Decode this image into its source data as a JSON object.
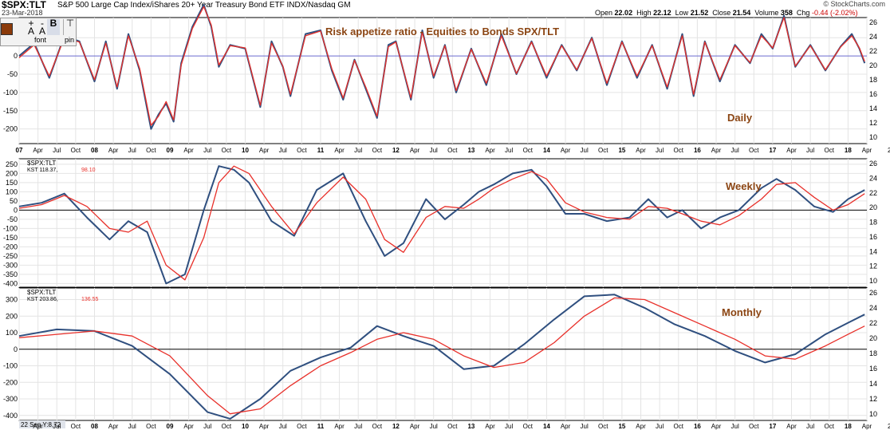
{
  "header": {
    "symbol": "$SPX:TLT",
    "name": "S&P 500 Large Cap Index/iShares 20+ Year Treasury Bond ETF  INDX/Nasdaq GM",
    "date": "23-Mar-2018",
    "logo": "© StockCharts.com",
    "open_label": "Open",
    "open": "22.02",
    "high_label": "High",
    "high": "22.12",
    "low_label": "Low",
    "low": "21.52",
    "close_label": "Close",
    "close": "21.54",
    "volume_label": "Volume",
    "volume": "358",
    "chg_label": "Chg",
    "chg": "-0.44 (-2.02%)"
  },
  "toolbar": {
    "font_label": "font",
    "pin_label": "pin",
    "swatch_color": "#8b3a0a"
  },
  "colors": {
    "blue": "#2f4f7f",
    "red": "#e8302a",
    "annot": "#8b4513",
    "zero": "#6b6bcf"
  },
  "chart_data": [
    {
      "type": "line",
      "panel": "daily",
      "title": "Risk appetize ratio  -  Equities to Bonds SPX/TLT",
      "annotation": "Daily",
      "ylim": [
        -240,
        105
      ],
      "yticks": [
        50,
        0,
        -50,
        -100,
        -150,
        -200
      ],
      "ytick_labels": [
        "50",
        "0",
        "-50",
        "-100",
        "-150",
        "-200"
      ],
      "right_ticks": [
        "26",
        "24",
        "22",
        "20",
        "18",
        "16",
        "14",
        "12",
        "10"
      ],
      "series": [
        {
          "name": "",
          "x": [
            2007.0,
            2007.2,
            2007.4,
            2007.6,
            2007.8,
            2008.0,
            2008.15,
            2008.3,
            2008.45,
            2008.6,
            2008.75,
            2008.85,
            2008.95,
            2009.05,
            2009.15,
            2009.3,
            2009.45,
            2009.55,
            2009.65,
            2009.8,
            2010.0,
            2010.2,
            2010.35,
            2010.5,
            2010.6,
            2010.8,
            2011.0,
            2011.15,
            2011.3,
            2011.45,
            2011.6,
            2011.75,
            2011.9,
            2012.0,
            2012.2,
            2012.35,
            2012.5,
            2012.65,
            2012.8,
            2013.0,
            2013.2,
            2013.4,
            2013.6,
            2013.8,
            2014.0,
            2014.2,
            2014.4,
            2014.6,
            2014.8,
            2015.0,
            2015.2,
            2015.4,
            2015.6,
            2015.8,
            2015.95,
            2016.1,
            2016.3,
            2016.5,
            2016.7,
            2016.85,
            2017.0,
            2017.15,
            2017.3,
            2017.5,
            2017.7,
            2017.9,
            2018.05,
            2018.15,
            2018.22
          ],
          "values": [
            0,
            35,
            -60,
            55,
            40,
            -70,
            40,
            -90,
            60,
            -40,
            -200,
            -160,
            -130,
            -180,
            -20,
            80,
            140,
            80,
            -30,
            30,
            20,
            -140,
            40,
            -30,
            -110,
            60,
            70,
            -40,
            -120,
            -10,
            -90,
            -170,
            30,
            40,
            -120,
            70,
            -60,
            30,
            -100,
            20,
            -80,
            60,
            -50,
            40,
            -60,
            30,
            -40,
            50,
            -80,
            40,
            -60,
            30,
            -90,
            60,
            -110,
            40,
            -70,
            30,
            -20,
            60,
            20,
            110,
            -30,
            30,
            -40,
            25,
            60,
            20,
            -20
          ]
        },
        {
          "name": "",
          "x": [
            2007.0,
            2007.2,
            2007.4,
            2007.6,
            2007.8,
            2008.0,
            2008.15,
            2008.3,
            2008.45,
            2008.6,
            2008.75,
            2008.85,
            2008.95,
            2009.05,
            2009.15,
            2009.3,
            2009.45,
            2009.55,
            2009.65,
            2009.8,
            2010.0,
            2010.2,
            2010.35,
            2010.5,
            2010.6,
            2010.8,
            2011.0,
            2011.15,
            2011.3,
            2011.45,
            2011.6,
            2011.75,
            2011.9,
            2012.0,
            2012.2,
            2012.35,
            2012.5,
            2012.65,
            2012.8,
            2013.0,
            2013.2,
            2013.4,
            2013.6,
            2013.8,
            2014.0,
            2014.2,
            2014.4,
            2014.6,
            2014.8,
            2015.0,
            2015.2,
            2015.4,
            2015.6,
            2015.8,
            2015.95,
            2016.1,
            2016.3,
            2016.5,
            2016.7,
            2016.85,
            2017.0,
            2017.15,
            2017.3,
            2017.5,
            2017.7,
            2017.9,
            2018.05,
            2018.15,
            2018.22
          ],
          "values": [
            -5,
            30,
            -55,
            50,
            38,
            -65,
            35,
            -85,
            55,
            -35,
            -190,
            -165,
            -125,
            -175,
            -25,
            75,
            135,
            85,
            -25,
            28,
            22,
            -135,
            35,
            -28,
            -105,
            55,
            68,
            -35,
            -115,
            -12,
            -85,
            -165,
            25,
            38,
            -115,
            65,
            -55,
            28,
            -95,
            18,
            -75,
            55,
            -48,
            38,
            -55,
            28,
            -38,
            48,
            -75,
            38,
            -55,
            28,
            -85,
            55,
            -105,
            38,
            -65,
            28,
            -18,
            55,
            22,
            105,
            -28,
            28,
            -38,
            24,
            55,
            22,
            -15
          ]
        }
      ]
    },
    {
      "type": "line",
      "panel": "weekly",
      "legend_symbol": "$SPX:TLT",
      "legend_kst": "KST 118.37,",
      "legend_sig": "98.10",
      "annotation": "Weekly",
      "ylim": [
        -420,
        280
      ],
      "yticks": [
        250,
        200,
        150,
        100,
        50,
        0,
        -50,
        -100,
        -150,
        -200,
        -250,
        -300,
        -350,
        -400
      ],
      "ytick_labels": [
        "250",
        "200",
        "150",
        "100",
        "50",
        "0",
        "-50",
        "-100",
        "-150",
        "-200",
        "-250",
        "-300",
        "-350",
        "-400"
      ],
      "right_ticks": [
        "26",
        "24",
        "22",
        "20",
        "18",
        "16",
        "14",
        "12",
        "10"
      ],
      "series": [
        {
          "name": "KST",
          "x": [
            2007.0,
            2007.3,
            2007.6,
            2007.9,
            2008.2,
            2008.45,
            2008.7,
            2008.95,
            2009.2,
            2009.45,
            2009.65,
            2009.85,
            2010.05,
            2010.35,
            2010.65,
            2010.95,
            2011.3,
            2011.6,
            2011.85,
            2012.1,
            2012.4,
            2012.65,
            2012.9,
            2013.1,
            2013.3,
            2013.55,
            2013.8,
            2014.0,
            2014.25,
            2014.5,
            2014.8,
            2015.1,
            2015.35,
            2015.6,
            2015.8,
            2016.05,
            2016.3,
            2016.55,
            2016.85,
            2017.05,
            2017.3,
            2017.55,
            2017.8,
            2018.0,
            2018.22
          ],
          "values": [
            20,
            40,
            90,
            -40,
            -160,
            -60,
            -120,
            -400,
            -350,
            0,
            240,
            220,
            150,
            -60,
            -140,
            110,
            200,
            -60,
            -250,
            -180,
            60,
            -50,
            30,
            100,
            140,
            200,
            220,
            130,
            -20,
            -20,
            -60,
            -40,
            60,
            -40,
            0,
            -100,
            -40,
            0,
            120,
            170,
            110,
            20,
            -10,
            60,
            110
          ]
        },
        {
          "name": "Signal",
          "x": [
            2007.0,
            2007.3,
            2007.6,
            2007.9,
            2008.2,
            2008.45,
            2008.7,
            2008.95,
            2009.2,
            2009.45,
            2009.65,
            2009.85,
            2010.05,
            2010.35,
            2010.65,
            2010.95,
            2011.3,
            2011.6,
            2011.85,
            2012.1,
            2012.4,
            2012.65,
            2012.9,
            2013.1,
            2013.3,
            2013.55,
            2013.8,
            2014.0,
            2014.25,
            2014.5,
            2014.8,
            2015.1,
            2015.35,
            2015.6,
            2015.8,
            2016.05,
            2016.3,
            2016.55,
            2016.85,
            2017.05,
            2017.3,
            2017.55,
            2017.8,
            2018.0,
            2018.22
          ],
          "values": [
            10,
            30,
            80,
            20,
            -100,
            -120,
            -60,
            -300,
            -380,
            -150,
            150,
            240,
            200,
            20,
            -130,
            40,
            180,
            60,
            -160,
            -230,
            -40,
            20,
            10,
            60,
            120,
            170,
            210,
            170,
            40,
            -10,
            -40,
            -50,
            20,
            10,
            -20,
            -60,
            -80,
            -30,
            60,
            140,
            150,
            70,
            0,
            30,
            90
          ]
        }
      ]
    },
    {
      "type": "line",
      "panel": "monthly",
      "legend_symbol": "$SPX:TLT",
      "legend_kst": "KST 203.86,",
      "legend_sig": "136.55",
      "annotation": "Monthly",
      "ylim": [
        -430,
        370
      ],
      "yticks": [
        300,
        200,
        100,
        0,
        -100,
        -200,
        -300,
        -400
      ],
      "ytick_labels": [
        "300",
        "200",
        "100",
        "0",
        "-100",
        "-200",
        "-300",
        "-400"
      ],
      "right_ticks": [
        "26",
        "24",
        "22",
        "20",
        "18",
        "16",
        "14",
        "12",
        "10"
      ],
      "footer": "22 Sep Y:8.72",
      "series": [
        {
          "name": "KST",
          "x": [
            2007.0,
            2007.5,
            2008.0,
            2008.5,
            2009.0,
            2009.5,
            2009.8,
            2010.2,
            2010.6,
            2011.0,
            2011.4,
            2011.75,
            2012.1,
            2012.5,
            2012.9,
            2013.3,
            2013.7,
            2014.1,
            2014.5,
            2014.9,
            2015.3,
            2015.7,
            2016.1,
            2016.5,
            2016.9,
            2017.3,
            2017.7,
            2018.0,
            2018.22
          ],
          "values": [
            80,
            120,
            110,
            20,
            -150,
            -380,
            -420,
            -300,
            -130,
            -50,
            10,
            140,
            80,
            20,
            -120,
            -100,
            30,
            180,
            320,
            330,
            250,
            150,
            80,
            -10,
            -80,
            -30,
            90,
            160,
            210
          ]
        },
        {
          "name": "Signal",
          "x": [
            2007.0,
            2007.5,
            2008.0,
            2008.5,
            2009.0,
            2009.5,
            2009.8,
            2010.2,
            2010.6,
            2011.0,
            2011.4,
            2011.75,
            2012.1,
            2012.5,
            2012.9,
            2013.3,
            2013.7,
            2014.1,
            2014.5,
            2014.9,
            2015.3,
            2015.7,
            2016.1,
            2016.5,
            2016.9,
            2017.3,
            2017.7,
            2018.0,
            2018.22
          ],
          "values": [
            70,
            90,
            110,
            80,
            -40,
            -280,
            -390,
            -360,
            -220,
            -100,
            -20,
            60,
            100,
            60,
            -40,
            -110,
            -80,
            40,
            200,
            310,
            300,
            220,
            140,
            60,
            -40,
            -60,
            20,
            90,
            140
          ]
        }
      ]
    }
  ],
  "xaxis": {
    "labels": [
      "07",
      "Apr",
      "Jul",
      "Oct",
      "08",
      "Apr",
      "Jul",
      "Oct",
      "09",
      "Apr",
      "Jul",
      "Oct",
      "10",
      "Apr",
      "Jul",
      "Oct",
      "11",
      "Apr",
      "Jul",
      "Oct",
      "12",
      "Apr",
      "Jul",
      "Oct",
      "13",
      "Apr",
      "Jul",
      "Oct",
      "14",
      "Apr",
      "Jul",
      "Oct",
      "15",
      "Apr",
      "Jul",
      "Oct",
      "16",
      "Apr",
      "Jul",
      "Oct",
      "17",
      "Apr",
      "Jul",
      "Oct",
      "18",
      "Apr"
    ],
    "start": 2007.0,
    "end": 2018.25,
    "edge_label": "2"
  }
}
